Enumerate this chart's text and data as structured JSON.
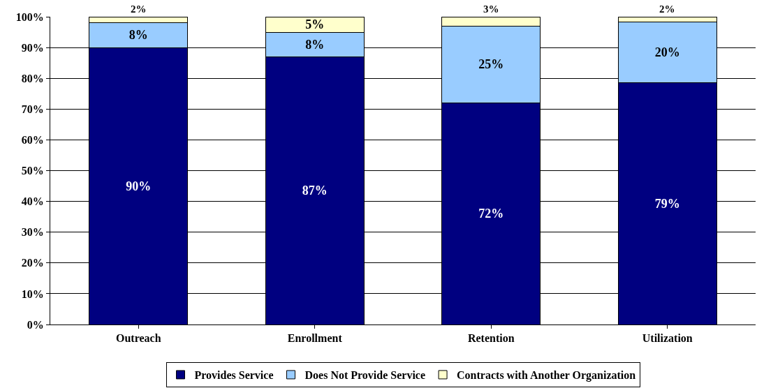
{
  "chart_data": {
    "type": "bar",
    "stacked": true,
    "categories": [
      "Outreach",
      "Enrollment",
      "Retention",
      "Utilization"
    ],
    "series": [
      {
        "name": "Provides Service",
        "color": "#000080",
        "values": [
          90,
          87,
          72,
          78.6
        ],
        "value_labels": [
          "90%",
          "87%",
          "72%",
          "79%"
        ]
      },
      {
        "name": "Does Not Provide Service",
        "color": "#99ccff",
        "values": [
          8,
          8,
          25,
          19.7
        ],
        "value_labels": [
          "8%",
          "8%",
          "25%",
          "20%"
        ]
      },
      {
        "name": "Contracts with Another Organization",
        "color": "#ffffcc",
        "values": [
          2,
          5,
          3,
          1.7
        ],
        "value_labels": [
          "2%",
          "5%",
          "3%",
          "2%"
        ]
      }
    ],
    "ylim": [
      0,
      100
    ],
    "yticks": [
      {
        "value": 0,
        "label": "0%"
      },
      {
        "value": 10,
        "label": "10%"
      },
      {
        "value": 20,
        "label": "20%"
      },
      {
        "value": 30,
        "label": "30%"
      },
      {
        "value": 40,
        "label": "40%"
      },
      {
        "value": 50,
        "label": "50%"
      },
      {
        "value": 60,
        "label": "60%"
      },
      {
        "value": 70,
        "label": "70%"
      },
      {
        "value": 80,
        "label": "80%"
      },
      {
        "value": 90,
        "label": "90%"
      },
      {
        "value": 100,
        "label": "100%"
      }
    ],
    "grid": "y",
    "legend": "bottom"
  }
}
